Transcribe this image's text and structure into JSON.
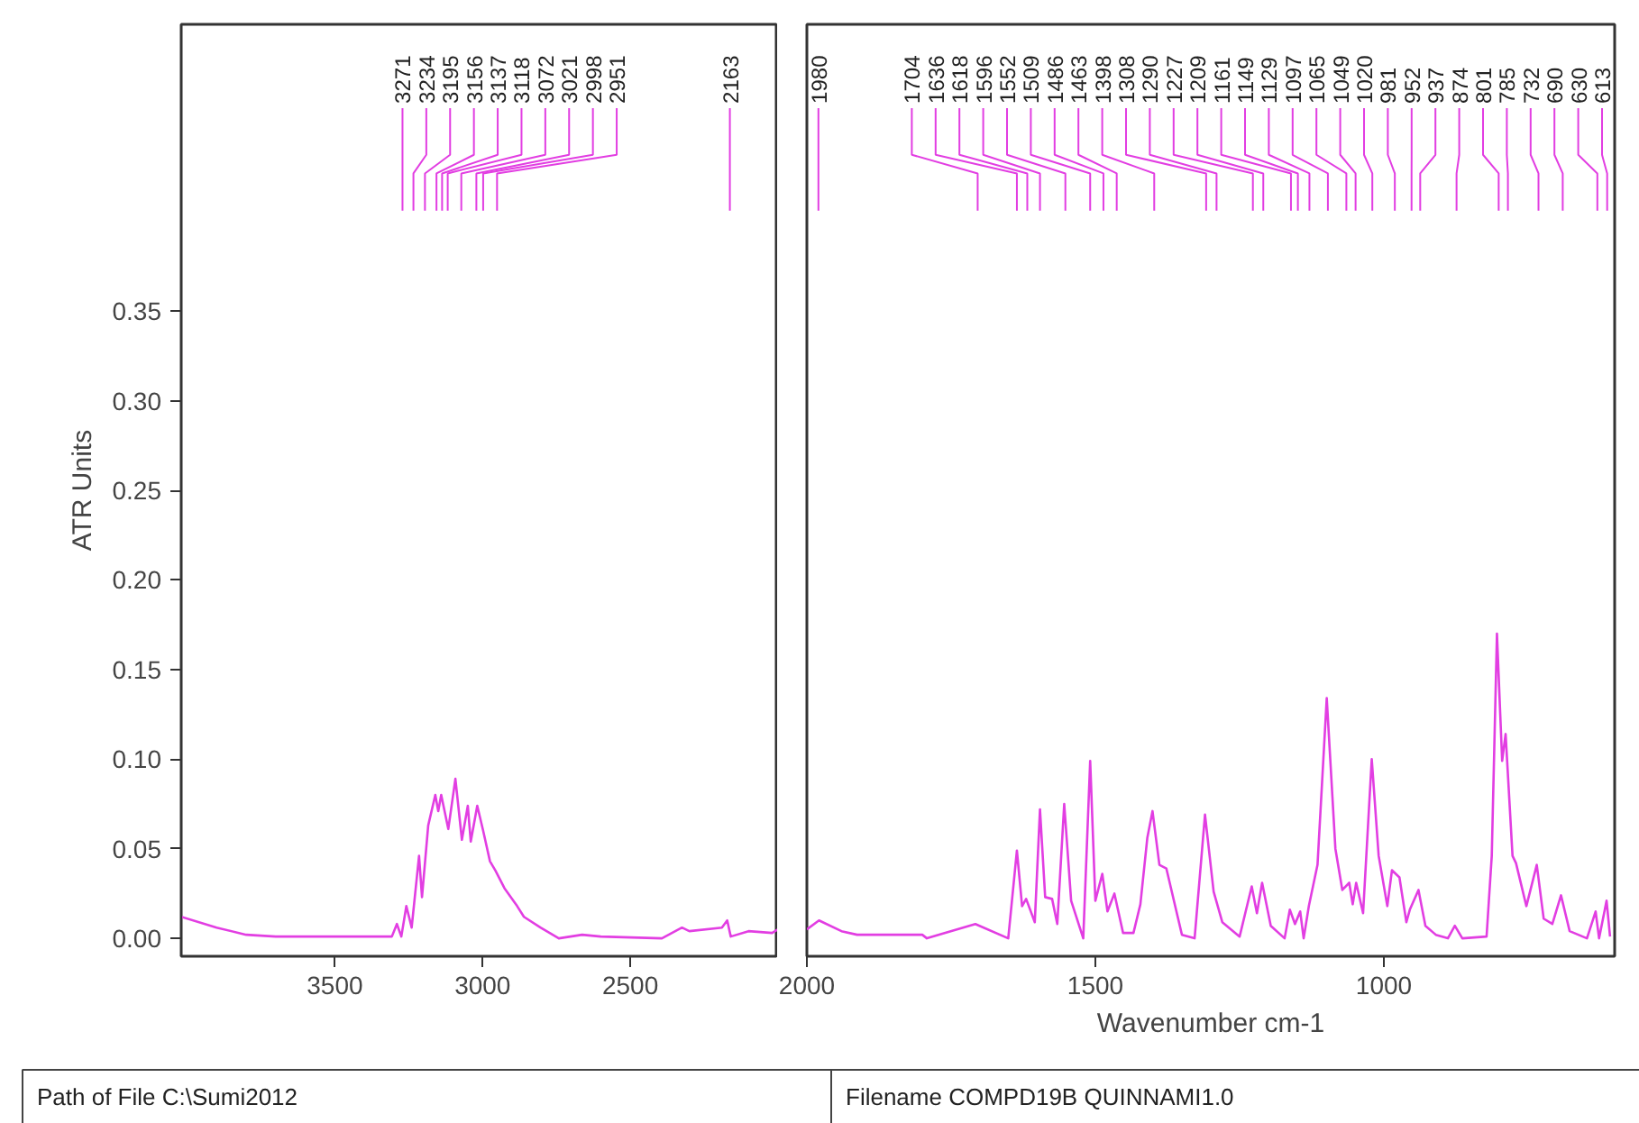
{
  "chart_data": [
    {
      "type": "line",
      "ylabel": "ATR Units",
      "xlim": [
        4020,
        2000
      ],
      "ylim": [
        -0.01,
        0.51
      ],
      "xticks": [
        3500,
        3000,
        2500
      ],
      "yticks": [
        {
          "value": 0,
          "label": "0.00"
        },
        {
          "value": 0.05,
          "label": "0.05"
        },
        {
          "value": 0.1,
          "label": "0.10"
        },
        {
          "value": 0.15,
          "label": "0.15"
        },
        {
          "value": 0.2,
          "label": "0.20"
        },
        {
          "value": 0.25,
          "label": "0.25"
        },
        {
          "value": 0.3,
          "label": "0.30"
        },
        {
          "value": 0.35,
          "label": "0.35"
        }
      ],
      "grid": false,
      "marker": "none",
      "line_style": "solid",
      "series": [
        {
          "color": "#e23ee2",
          "x": [
            4020,
            3900,
            3800,
            3700,
            3500,
            3307,
            3290,
            3275,
            3258,
            3240,
            3215,
            3205,
            3184,
            3160,
            3150,
            3140,
            3116,
            3092,
            3070,
            3050,
            3040,
            3018,
            2998,
            2975,
            2957,
            2926,
            2883,
            2860,
            2804,
            2742,
            2663,
            2600,
            2393,
            2325,
            2300,
            2190,
            2172,
            2160,
            2100,
            2020,
            2000
          ],
          "values": [
            0.012,
            0.006,
            0.002,
            0.001,
            0.001,
            0.001,
            0.008,
            0.001,
            0.018,
            0.006,
            0.046,
            0.023,
            0.063,
            0.08,
            0.071,
            0.08,
            0.061,
            0.089,
            0.055,
            0.074,
            0.054,
            0.074,
            0.06,
            0.043,
            0.038,
            0.028,
            0.018,
            0.012,
            0.006,
            0.0,
            0.002,
            0.001,
            0.0,
            0.006,
            0.004,
            0.006,
            0.01,
            0.001,
            0.004,
            0.003,
            0.005
          ]
        }
      ],
      "annotations": [
        {
          "text": "3271",
          "x": 3271
        },
        {
          "text": "3234",
          "x": 3234
        },
        {
          "text": "3195",
          "x": 3195
        },
        {
          "text": "3156",
          "x": 3156
        },
        {
          "text": "3137",
          "x": 3137
        },
        {
          "text": "3118",
          "x": 3118
        },
        {
          "text": "3072",
          "x": 3072
        },
        {
          "text": "3021",
          "x": 3021
        },
        {
          "text": "2998",
          "x": 2998
        },
        {
          "text": "2951",
          "x": 2951
        },
        {
          "text": "2163",
          "x": 2163
        },
        "Path of File  C:\\Sumi2012",
        "Filename  COMPD19B QUINNAMI1.0"
      ]
    },
    {
      "type": "line",
      "xlabel": "Wavenumber cm-1",
      "xlim": [
        2000,
        600
      ],
      "ylim": [
        -0.01,
        0.51
      ],
      "xticks": [
        2000,
        1500,
        1000
      ],
      "tick_labels": "x",
      "grid": false,
      "marker": "none",
      "line_style": "solid",
      "series": [
        {
          "color": "#e23ee2",
          "x": [
            2000,
            1979,
            1940,
            1913,
            1800,
            1792,
            1708,
            1651,
            1636,
            1627,
            1620,
            1605,
            1596,
            1587,
            1575,
            1566,
            1554,
            1542,
            1521,
            1509,
            1500,
            1488,
            1479,
            1467,
            1452,
            1434,
            1422,
            1410,
            1401,
            1389,
            1377,
            1350,
            1328,
            1310,
            1295,
            1280,
            1250,
            1229,
            1220,
            1211,
            1196,
            1172,
            1163,
            1154,
            1145,
            1139,
            1130,
            1115,
            1099,
            1084,
            1072,
            1060,
            1054,
            1048,
            1036,
            1021,
            1009,
            994,
            986,
            973,
            961,
            955,
            940,
            928,
            910,
            889,
            877,
            864,
            822,
            813,
            804,
            795,
            789,
            777,
            771,
            753,
            735,
            723,
            708,
            693,
            678,
            648,
            633,
            627,
            614,
            608
          ],
          "values": [
            0.005,
            0.01,
            0.004,
            0.002,
            0.002,
            0.0,
            0.008,
            0.0,
            0.049,
            0.018,
            0.022,
            0.009,
            0.072,
            0.023,
            0.022,
            0.008,
            0.075,
            0.021,
            0.0,
            0.099,
            0.021,
            0.036,
            0.015,
            0.025,
            0.003,
            0.003,
            0.019,
            0.056,
            0.071,
            0.041,
            0.039,
            0.002,
            0.0,
            0.069,
            0.026,
            0.009,
            0.001,
            0.029,
            0.014,
            0.031,
            0.007,
            0.0,
            0.016,
            0.008,
            0.015,
            0.0,
            0.018,
            0.041,
            0.134,
            0.05,
            0.027,
            0.031,
            0.019,
            0.031,
            0.014,
            0.1,
            0.046,
            0.018,
            0.038,
            0.034,
            0.009,
            0.016,
            0.027,
            0.007,
            0.002,
            0.0,
            0.007,
            0.0,
            0.001,
            0.046,
            0.17,
            0.099,
            0.114,
            0.046,
            0.042,
            0.018,
            0.041,
            0.011,
            0.008,
            0.024,
            0.004,
            0.0,
            0.015,
            0.0,
            0.021,
            0.001
          ]
        }
      ],
      "annotations": [
        {
          "text": "1980",
          "x": 1980
        },
        {
          "text": "1704",
          "x": 1704
        },
        {
          "text": "1636",
          "x": 1636
        },
        {
          "text": "1618",
          "x": 1618
        },
        {
          "text": "1596",
          "x": 1596
        },
        {
          "text": "1552",
          "x": 1552
        },
        {
          "text": "1509",
          "x": 1509
        },
        {
          "text": "1486",
          "x": 1486
        },
        {
          "text": "1463",
          "x": 1463
        },
        {
          "text": "1398",
          "x": 1398
        },
        {
          "text": "1308",
          "x": 1308
        },
        {
          "text": "1290",
          "x": 1290
        },
        {
          "text": "1227",
          "x": 1227
        },
        {
          "text": "1209",
          "x": 1209
        },
        {
          "text": "1161",
          "x": 1161
        },
        {
          "text": "1149",
          "x": 1149
        },
        {
          "text": "1129",
          "x": 1129
        },
        {
          "text": "1097",
          "x": 1097
        },
        {
          "text": "1065",
          "x": 1065
        },
        {
          "text": "1049",
          "x": 1049
        },
        {
          "text": "1020",
          "x": 1020
        },
        {
          "text": "981",
          "x": 981
        },
        {
          "text": "952",
          "x": 952
        },
        {
          "text": "937",
          "x": 937
        },
        {
          "text": "874",
          "x": 874
        },
        {
          "text": "801",
          "x": 801
        },
        {
          "text": "785",
          "x": 785
        },
        {
          "text": "732",
          "x": 732
        },
        {
          "text": "690",
          "x": 690
        },
        {
          "text": "630",
          "x": 630
        },
        {
          "text": "613",
          "x": 613
        }
      ]
    }
  ]
}
